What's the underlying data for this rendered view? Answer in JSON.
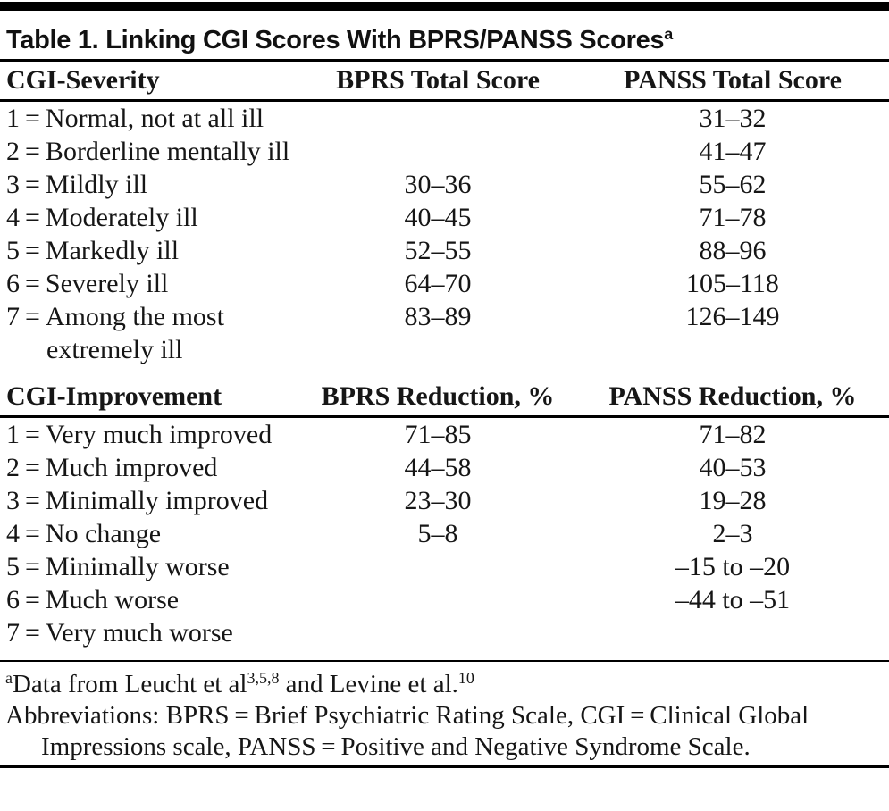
{
  "title": {
    "text": "Table 1. Linking CGI Scores With BPRS/PANSS Scores",
    "superscript": "a"
  },
  "severity_section": {
    "headers": [
      "CGI-Severity",
      "BPRS Total Score",
      "PANSS Total Score"
    ],
    "rows": [
      {
        "label": "1 = Normal, not at all ill",
        "bprs": "",
        "panss": "31–32"
      },
      {
        "label": "2 = Borderline mentally ill",
        "bprs": "",
        "panss": "41–47"
      },
      {
        "label": "3 = Mildly ill",
        "bprs": "30–36",
        "panss": "55–62"
      },
      {
        "label": "4 = Moderately ill",
        "bprs": "40–45",
        "panss": "71–78"
      },
      {
        "label": "5 = Markedly ill",
        "bprs": "52–55",
        "panss": "88–96"
      },
      {
        "label": "6 = Severely ill",
        "bprs": "64–70",
        "panss": "105–118"
      },
      {
        "label": "7 = Among the most extremely ill",
        "bprs": "83–89",
        "panss": "126–149"
      }
    ]
  },
  "improvement_section": {
    "headers": [
      "CGI-Improvement",
      "BPRS Reduction, %",
      "PANSS Reduction, %"
    ],
    "rows": [
      {
        "label": "1 = Very much improved",
        "bprs": "71–85",
        "panss": "71–82"
      },
      {
        "label": "2 = Much improved",
        "bprs": "44–58",
        "panss": "40–53"
      },
      {
        "label": "3 = Minimally improved",
        "bprs": "23–30",
        "panss": "19–28"
      },
      {
        "label": "4 = No change",
        "bprs": "5–8",
        "panss": "2–3"
      },
      {
        "label": "5 = Minimally worse",
        "bprs": "",
        "panss": "–15 to –20"
      },
      {
        "label": "6 = Much worse",
        "bprs": "",
        "panss": "–44 to –51"
      },
      {
        "label": "7 = Very much worse",
        "bprs": "",
        "panss": ""
      }
    ]
  },
  "footnotes": {
    "note_a": {
      "marker": "a",
      "part1": "Data from Leucht et al",
      "sup1": "3,5,8",
      "part2": " and Levine et al.",
      "sup2": "10"
    },
    "abbreviations": "Abbreviations: BPRS = Brief Psychiatric Rating Scale, CGI = Clinical Global Impressions scale, PANSS = Positive and Negative Syndrome Scale."
  },
  "colors": {
    "text": "#161616",
    "rule": "#000000",
    "background": "#ffffff"
  }
}
